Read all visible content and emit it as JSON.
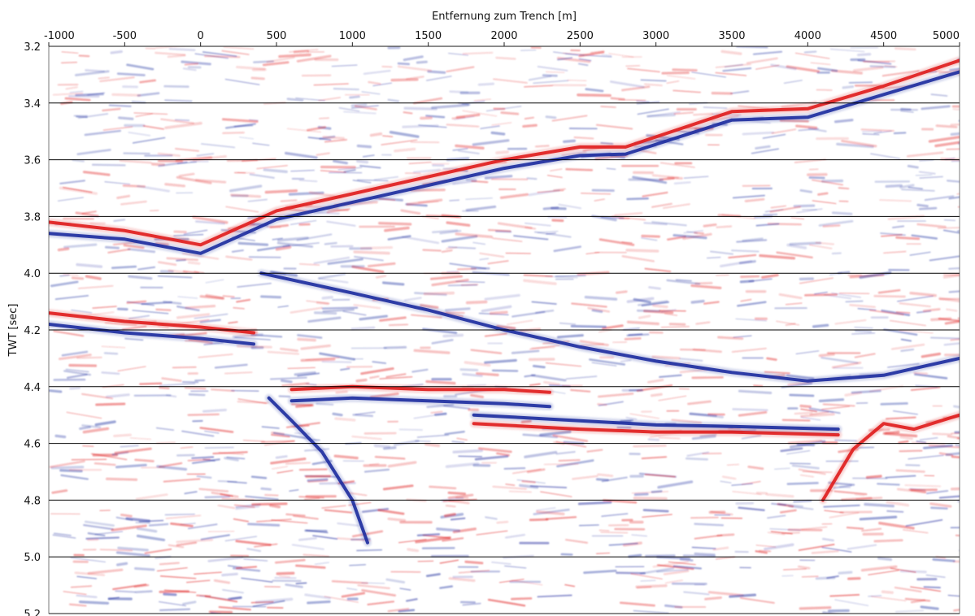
{
  "chart_data": {
    "type": "heatmap",
    "title": "",
    "xlabel": "Entfernung zum Trench [m]",
    "ylabel": "TWT [sec]",
    "x_axis_position": "top",
    "xlim": [
      -1000,
      5000
    ],
    "ylim": [
      5.2,
      3.2
    ],
    "y_inverted": true,
    "x_ticks": [
      -1000,
      -500,
      0,
      500,
      1000,
      1500,
      2000,
      2500,
      3000,
      3500,
      4000,
      4500,
      5000
    ],
    "x_tick_labels": [
      "-1000",
      "-500",
      "0",
      "500",
      "1000",
      "1500",
      "2000",
      "2500",
      "3000",
      "3500",
      "4000",
      "4500",
      "5000"
    ],
    "y_ticks": [
      3.2,
      3.4,
      3.6,
      3.8,
      4.0,
      4.2,
      4.4,
      4.6,
      4.8,
      5.0,
      5.2
    ],
    "y_tick_labels": [
      "3.2",
      "3.4",
      "3.6",
      "3.8",
      "4.0",
      "4.2",
      "4.4",
      "4.6",
      "4.8",
      "5.0",
      "5.2"
    ],
    "grid": {
      "horizontal": true,
      "vertical": false
    },
    "colormap": {
      "positive": "#e02020",
      "negative": "#1f2fa0",
      "zero": "#ffffff"
    },
    "reflectors": [
      {
        "polarity": "positive",
        "points": [
          [
            -1000,
            3.82
          ],
          [
            -500,
            3.85
          ],
          [
            0,
            3.9
          ],
          [
            500,
            3.78
          ],
          [
            1000,
            3.72
          ],
          [
            1500,
            3.66
          ],
          [
            2000,
            3.6
          ],
          [
            2500,
            3.555
          ],
          [
            2800,
            3.555
          ],
          [
            3500,
            3.43
          ],
          [
            4000,
            3.42
          ],
          [
            4500,
            3.34
          ],
          [
            5000,
            3.25
          ]
        ]
      },
      {
        "polarity": "negative",
        "points": [
          [
            -1000,
            3.86
          ],
          [
            -500,
            3.88
          ],
          [
            0,
            3.93
          ],
          [
            500,
            3.81
          ],
          [
            1000,
            3.75
          ],
          [
            1500,
            3.69
          ],
          [
            2000,
            3.63
          ],
          [
            2500,
            3.585
          ],
          [
            2800,
            3.58
          ],
          [
            3500,
            3.46
          ],
          [
            4000,
            3.45
          ],
          [
            4500,
            3.37
          ],
          [
            5000,
            3.29
          ]
        ]
      },
      {
        "polarity": "positive",
        "points": [
          [
            -1000,
            4.14
          ],
          [
            -500,
            4.17
          ],
          [
            0,
            4.19
          ],
          [
            350,
            4.21
          ]
        ]
      },
      {
        "polarity": "negative",
        "points": [
          [
            -1000,
            4.18
          ],
          [
            -500,
            4.21
          ],
          [
            0,
            4.23
          ],
          [
            350,
            4.25
          ]
        ]
      },
      {
        "polarity": "negative",
        "points": [
          [
            400,
            4.0
          ],
          [
            1000,
            4.07
          ],
          [
            1500,
            4.13
          ],
          [
            2000,
            4.2
          ],
          [
            2500,
            4.26
          ],
          [
            3000,
            4.31
          ],
          [
            3500,
            4.35
          ],
          [
            4000,
            4.38
          ],
          [
            4500,
            4.36
          ],
          [
            5000,
            4.3
          ]
        ]
      },
      {
        "polarity": "positive",
        "points": [
          [
            600,
            4.41
          ],
          [
            1000,
            4.4
          ],
          [
            1500,
            4.41
          ],
          [
            2000,
            4.41
          ],
          [
            2300,
            4.42
          ]
        ]
      },
      {
        "polarity": "negative",
        "points": [
          [
            600,
            4.45
          ],
          [
            1000,
            4.44
          ],
          [
            1500,
            4.45
          ],
          [
            2000,
            4.46
          ],
          [
            2300,
            4.47
          ]
        ]
      },
      {
        "polarity": "positive",
        "points": [
          [
            1800,
            4.53
          ],
          [
            2500,
            4.55
          ],
          [
            3000,
            4.56
          ],
          [
            3500,
            4.56
          ],
          [
            4200,
            4.57
          ]
        ]
      },
      {
        "polarity": "negative",
        "points": [
          [
            1800,
            4.5
          ],
          [
            2500,
            4.52
          ],
          [
            3000,
            4.535
          ],
          [
            3500,
            4.54
          ],
          [
            4200,
            4.55
          ]
        ]
      },
      {
        "polarity": "negative",
        "points": [
          [
            450,
            4.44
          ],
          [
            600,
            4.52
          ],
          [
            800,
            4.63
          ],
          [
            1000,
            4.8
          ],
          [
            1100,
            4.95
          ]
        ]
      },
      {
        "polarity": "positive",
        "points": [
          [
            4100,
            4.8
          ],
          [
            4300,
            4.62
          ],
          [
            4500,
            4.53
          ],
          [
            4700,
            4.55
          ],
          [
            5000,
            4.5
          ]
        ]
      }
    ]
  }
}
